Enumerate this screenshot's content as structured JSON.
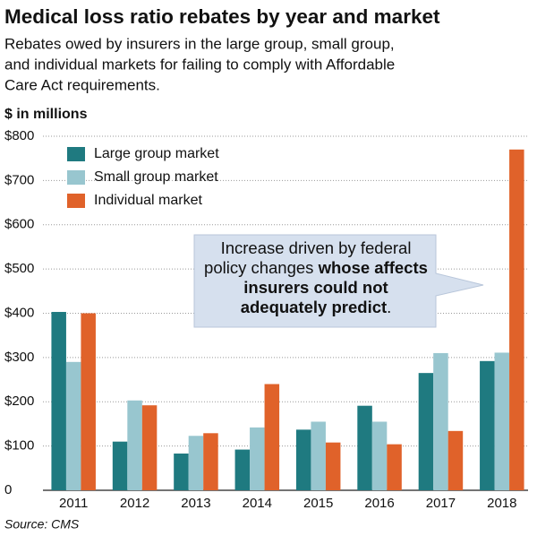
{
  "chart_data": {
    "type": "bar",
    "title": "Medical loss ratio rebates by year and market",
    "subtitle": [
      "Rebates owed by insurers in the large group, small group,",
      "and individual markets for failing to comply with Affordable",
      "Care Act requirements."
    ],
    "y_label": "$ in millions",
    "source": "Source: CMS",
    "categories": [
      "2011",
      "2012",
      "2013",
      "2014",
      "2015",
      "2016",
      "2017",
      "2018"
    ],
    "series": [
      {
        "name": "Large group market",
        "color": "#1f7a80",
        "values": [
          403,
          110,
          83,
          92,
          137,
          191,
          265,
          292
        ]
      },
      {
        "name": "Small group market",
        "color": "#98c6cf",
        "values": [
          290,
          203,
          123,
          142,
          155,
          155,
          310,
          311
        ]
      },
      {
        "name": "Individual market",
        "color": "#e0622a",
        "values": [
          400,
          192,
          129,
          240,
          108,
          104,
          134,
          770
        ]
      }
    ],
    "ylim": [
      0,
      800
    ],
    "yticks": [
      0,
      {
        "value": 100,
        "label": "$100"
      },
      {
        "value": 200,
        "label": "$200"
      },
      {
        "value": 300,
        "label": "$300"
      },
      {
        "value": 400,
        "label": "$400"
      },
      {
        "value": 500,
        "label": "$500"
      },
      {
        "value": 600,
        "label": "$600"
      },
      {
        "value": 700,
        "label": "$700"
      },
      {
        "value": 800,
        "label": "$800"
      }
    ],
    "grid": true,
    "legend": "upper left",
    "annotation": [
      {
        "text": "Increase driven by federal policy changes",
        "bold": false
      },
      {
        "text": "whose affects insurers could not adequately predict",
        "bold": true
      },
      {
        "text": ".",
        "bold": false
      }
    ]
  }
}
